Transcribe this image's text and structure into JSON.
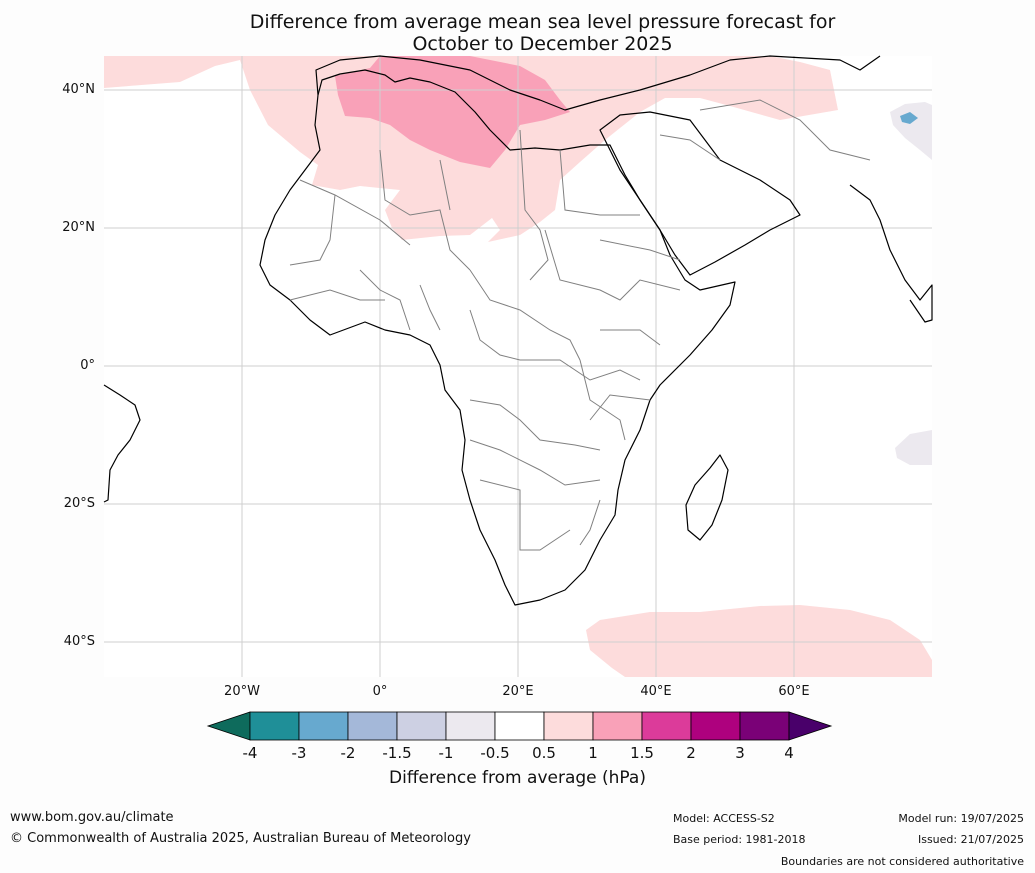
{
  "title_line1": "Difference from average mean sea level pressure forecast for",
  "title_line2": "October to December 2025",
  "lat_labels": [
    "40°N",
    "20°N",
    "0°",
    "20°S",
    "40°S"
  ],
  "lon_labels": [
    "20°W",
    "0°",
    "20°E",
    "40°E",
    "60°E"
  ],
  "colorbar": {
    "title": "Difference from average (hPa)",
    "tick_labels": [
      "-4",
      "-3",
      "-2",
      "-1.5",
      "-1",
      "-0.5",
      "0.5",
      "1",
      "1.5",
      "2",
      "3",
      "4"
    ],
    "colors": [
      "#0e6b5c",
      "#1f8f98",
      "#67a9cf",
      "#a4b8d9",
      "#cdd0e3",
      "#ece9ef",
      "#ffffff",
      "#fddcdc",
      "#f9a1b8",
      "#dc3b9a",
      "#ae017e",
      "#7a0177",
      "#49006a"
    ]
  },
  "anomaly_colors": {
    "weak_positive": "#fddcdc",
    "moderate_positive": "#f9a1b8",
    "weak_negative": "#ece9ef",
    "moderate_negative": "#67a9cf"
  },
  "footer": {
    "website": "www.bom.gov.au/climate",
    "copyright": "© Commonwealth of Australia 2025, Australian Bureau of Meteorology",
    "model": "Model: ACCESS-S2",
    "base_period": "Base period: 1981-2018",
    "model_run": "Model run: 19/07/2025",
    "issued": "Issued: 21/07/2025",
    "disclaimer": "Boundaries are not considered authoritative"
  }
}
